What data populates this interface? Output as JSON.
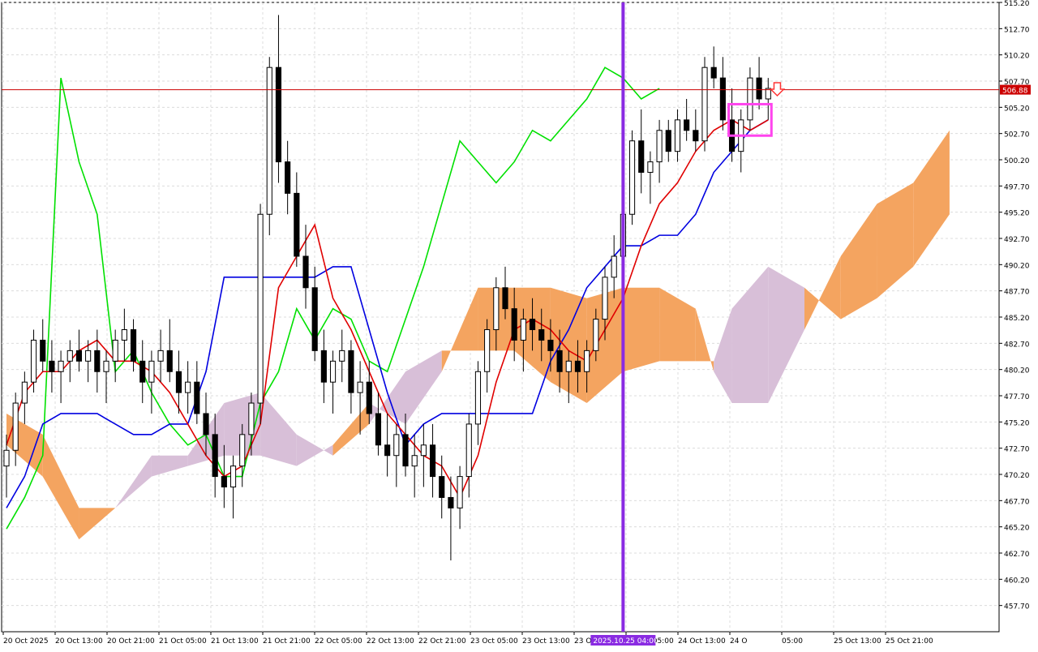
{
  "chart_data": {
    "type": "candlestick",
    "title": "",
    "price_axis": {
      "ylim": [
        455.2,
        515.2
      ],
      "ticks": [
        "515.20",
        "512.70",
        "510.20",
        "507.70",
        "505.20",
        "502.70",
        "500.20",
        "497.70",
        "495.20",
        "492.70",
        "490.20",
        "487.70",
        "485.20",
        "482.70",
        "480.20",
        "477.70",
        "475.20",
        "472.70",
        "470.20",
        "467.70",
        "465.20",
        "462.70",
        "460.20",
        "457.70"
      ]
    },
    "time_axis": {
      "ticks": [
        "20 Oct 2025",
        "20 Oct 13:00",
        "20 Oct 21:00",
        "21 Oct 05:00",
        "21 Oct 13:00",
        "21 Oct 21:00",
        "22 Oct 05:00",
        "22 Oct 13:00",
        "22 Oct 21:00",
        "23 Oct 05:00",
        "23 Oct 13:00",
        "23 Oct 21:00",
        "24 Oct 05:00",
        "24 Oct 13:00",
        "24 O",
        "05:00",
        "25 Oct 13:00",
        "25 Oct 21:00"
      ],
      "cursor_label": "2025.10.25 04:00"
    },
    "current_price": {
      "value": 506.88,
      "label": "506.88"
    },
    "grid": true,
    "colors": {
      "bull_body": "#ffffff",
      "bear_body": "#000000",
      "tenkan": "#e00000",
      "kijun": "#0000e0",
      "chikou": "#00e000",
      "kumo_bull": "#f4a460",
      "kumo_bear": "#d8bfd8",
      "cursor": "#8a2be2",
      "highlight": "#ff44ee",
      "price_line": "#cc0000"
    },
    "candles": [
      [
        471,
        474,
        468,
        472.5
      ],
      [
        472.5,
        478,
        471,
        477
      ],
      [
        477,
        480,
        475,
        479
      ],
      [
        479,
        484,
        478,
        483
      ],
      [
        483,
        485,
        480,
        481
      ],
      [
        481,
        483,
        478,
        480
      ],
      [
        480,
        482,
        477,
        481
      ],
      [
        481,
        483,
        479,
        482
      ],
      [
        482,
        484,
        480,
        481
      ],
      [
        481,
        483,
        479,
        482
      ],
      [
        482,
        484,
        478,
        480
      ],
      [
        480,
        482,
        477,
        481
      ],
      [
        481,
        484,
        479,
        483
      ],
      [
        483,
        486,
        481,
        484
      ],
      [
        484,
        485,
        480,
        481
      ],
      [
        481,
        483,
        477,
        479
      ],
      [
        479,
        482,
        476,
        481
      ],
      [
        481,
        484,
        479,
        482
      ],
      [
        482,
        485,
        479,
        480
      ],
      [
        480,
        482,
        476,
        478
      ],
      [
        478,
        481,
        476,
        479
      ],
      [
        479,
        481,
        475,
        476
      ],
      [
        476,
        478,
        472,
        474
      ],
      [
        474,
        476,
        468,
        470
      ],
      [
        470,
        473,
        467,
        469
      ],
      [
        469,
        472,
        466,
        471
      ],
      [
        471,
        475,
        469,
        474
      ],
      [
        474,
        478,
        472,
        477
      ],
      [
        477,
        496,
        475,
        495
      ],
      [
        495,
        510,
        493,
        509
      ],
      [
        509,
        514,
        498,
        500
      ],
      [
        500,
        502,
        495,
        497
      ],
      [
        497,
        499,
        490,
        491
      ],
      [
        491,
        494,
        486,
        488
      ],
      [
        488,
        490,
        481,
        482
      ],
      [
        482,
        484,
        477,
        479
      ],
      [
        479,
        482,
        476,
        481
      ],
      [
        481,
        484,
        479,
        482
      ],
      [
        482,
        483,
        476,
        478
      ],
      [
        478,
        481,
        474,
        479
      ],
      [
        479,
        481,
        475,
        476
      ],
      [
        476,
        478,
        472,
        473
      ],
      [
        473,
        476,
        470,
        472
      ],
      [
        472,
        475,
        469,
        474
      ],
      [
        474,
        476,
        470,
        471
      ],
      [
        471,
        474,
        468,
        472
      ],
      [
        472,
        475,
        469,
        473
      ],
      [
        473,
        475,
        468,
        470
      ],
      [
        470,
        472,
        466,
        468
      ],
      [
        468,
        470,
        462,
        467
      ],
      [
        467,
        471,
        465,
        470
      ],
      [
        470,
        476,
        468,
        475
      ],
      [
        475,
        481,
        473,
        480
      ],
      [
        480,
        485,
        478,
        484
      ],
      [
        484,
        489,
        482,
        488
      ],
      [
        488,
        490,
        485,
        486
      ],
      [
        486,
        488,
        481,
        483
      ],
      [
        483,
        486,
        480,
        485
      ],
      [
        485,
        487,
        482,
        484
      ],
      [
        484,
        486,
        481,
        483
      ],
      [
        483,
        485,
        480,
        482
      ],
      [
        482,
        484,
        478,
        480
      ],
      [
        480,
        482,
        477,
        481
      ],
      [
        481,
        483,
        478,
        480
      ],
      [
        480,
        483,
        478,
        482
      ],
      [
        482,
        486,
        481,
        485
      ],
      [
        485,
        490,
        483,
        489
      ],
      [
        489,
        493,
        487,
        491
      ],
      [
        491,
        496,
        489,
        495
      ],
      [
        495,
        503,
        494,
        502
      ],
      [
        502,
        505,
        497,
        499
      ],
      [
        499,
        501,
        496,
        500
      ],
      [
        500,
        504,
        498,
        503
      ],
      [
        503,
        504,
        500,
        501
      ],
      [
        501,
        505,
        500,
        504
      ],
      [
        504,
        506,
        502,
        503
      ],
      [
        503,
        505,
        501,
        502
      ],
      [
        502,
        510,
        501,
        509
      ],
      [
        509,
        511,
        507,
        508
      ],
      [
        508,
        510,
        503,
        504
      ],
      [
        504,
        507,
        500,
        501
      ],
      [
        501,
        505,
        499,
        504
      ],
      [
        504,
        509,
        503,
        508
      ],
      [
        508,
        510,
        505,
        506
      ],
      [
        506,
        508,
        504,
        507
      ]
    ],
    "tenkan_sen": [
      [
        0,
        473
      ],
      [
        2,
        478
      ],
      [
        4,
        480
      ],
      [
        6,
        480
      ],
      [
        8,
        482
      ],
      [
        10,
        483
      ],
      [
        12,
        481
      ],
      [
        14,
        481
      ],
      [
        16,
        480
      ],
      [
        18,
        478
      ],
      [
        20,
        475
      ],
      [
        22,
        472
      ],
      [
        24,
        470
      ],
      [
        26,
        471
      ],
      [
        28,
        475
      ],
      [
        30,
        488
      ],
      [
        32,
        491
      ],
      [
        34,
        494
      ],
      [
        36,
        487
      ],
      [
        38,
        484
      ],
      [
        40,
        480
      ],
      [
        42,
        476
      ],
      [
        44,
        474
      ],
      [
        46,
        472
      ],
      [
        48,
        471
      ],
      [
        50,
        468
      ],
      [
        52,
        472
      ],
      [
        54,
        479
      ],
      [
        56,
        484
      ],
      [
        58,
        485
      ],
      [
        60,
        484
      ],
      [
        62,
        482
      ],
      [
        64,
        481
      ],
      [
        66,
        484
      ],
      [
        68,
        487
      ],
      [
        70,
        492
      ],
      [
        72,
        496
      ],
      [
        74,
        498
      ],
      [
        76,
        501
      ],
      [
        78,
        503
      ],
      [
        80,
        504
      ],
      [
        82,
        503
      ],
      [
        84,
        504
      ]
    ],
    "kijun_sen": [
      [
        0,
        467
      ],
      [
        2,
        470
      ],
      [
        4,
        475
      ],
      [
        6,
        476
      ],
      [
        8,
        476
      ],
      [
        10,
        476
      ],
      [
        12,
        475
      ],
      [
        14,
        474
      ],
      [
        16,
        474
      ],
      [
        18,
        475
      ],
      [
        20,
        475
      ],
      [
        22,
        480
      ],
      [
        24,
        489
      ],
      [
        26,
        489
      ],
      [
        28,
        489
      ],
      [
        30,
        489
      ],
      [
        32,
        489
      ],
      [
        34,
        489
      ],
      [
        36,
        490
      ],
      [
        38,
        490
      ],
      [
        40,
        484
      ],
      [
        42,
        478
      ],
      [
        44,
        473
      ],
      [
        46,
        475
      ],
      [
        48,
        476
      ],
      [
        50,
        476
      ],
      [
        52,
        476
      ],
      [
        54,
        476
      ],
      [
        56,
        476
      ],
      [
        58,
        476
      ],
      [
        60,
        481
      ],
      [
        62,
        484
      ],
      [
        64,
        488
      ],
      [
        66,
        490
      ],
      [
        68,
        492
      ],
      [
        70,
        492
      ],
      [
        72,
        493
      ],
      [
        74,
        493
      ],
      [
        76,
        495
      ],
      [
        78,
        499
      ],
      [
        80,
        501
      ],
      [
        82,
        503
      ],
      [
        84,
        504
      ]
    ],
    "chikou_span": [
      [
        0,
        465
      ],
      [
        2,
        468
      ],
      [
        4,
        472
      ],
      [
        6,
        508
      ],
      [
        8,
        500
      ],
      [
        10,
        495
      ],
      [
        12,
        480
      ],
      [
        14,
        482
      ],
      [
        16,
        478
      ],
      [
        18,
        475
      ],
      [
        20,
        473
      ],
      [
        22,
        474
      ],
      [
        24,
        470
      ],
      [
        26,
        470
      ],
      [
        28,
        477
      ],
      [
        30,
        480
      ],
      [
        32,
        486
      ],
      [
        34,
        483
      ],
      [
        36,
        486
      ],
      [
        38,
        485
      ],
      [
        40,
        481
      ],
      [
        42,
        480
      ],
      [
        44,
        485
      ],
      [
        46,
        490
      ],
      [
        48,
        496
      ],
      [
        50,
        502
      ],
      [
        52,
        500
      ],
      [
        54,
        498
      ],
      [
        56,
        500
      ],
      [
        58,
        503
      ],
      [
        60,
        502
      ],
      [
        62,
        504
      ],
      [
        64,
        506
      ],
      [
        66,
        509
      ],
      [
        68,
        508
      ],
      [
        70,
        506
      ],
      [
        72,
        507
      ]
    ],
    "kumo": {
      "span_a": [
        [
          0,
          476
        ],
        [
          4,
          474
        ],
        [
          8,
          467
        ],
        [
          12,
          467
        ],
        [
          16,
          470
        ],
        [
          20,
          471
        ],
        [
          24,
          472
        ],
        [
          28,
          472
        ],
        [
          32,
          471
        ],
        [
          36,
          473
        ],
        [
          40,
          477
        ],
        [
          44,
          475
        ],
        [
          48,
          480
        ],
        [
          52,
          488
        ],
        [
          56,
          488
        ],
        [
          60,
          488
        ],
        [
          64,
          487
        ],
        [
          68,
          488
        ],
        [
          72,
          488
        ],
        [
          76,
          486
        ],
        [
          78,
          480
        ],
        [
          80,
          477
        ],
        [
          84,
          477
        ],
        [
          88,
          484
        ],
        [
          92,
          491
        ],
        [
          96,
          496
        ],
        [
          100,
          498
        ],
        [
          104,
          503
        ]
      ],
      "span_b": [
        [
          0,
          473
        ],
        [
          4,
          470
        ],
        [
          8,
          464
        ],
        [
          12,
          467
        ],
        [
          16,
          472
        ],
        [
          20,
          472
        ],
        [
          24,
          477
        ],
        [
          28,
          478
        ],
        [
          32,
          474
        ],
        [
          36,
          472
        ],
        [
          40,
          475
        ],
        [
          44,
          480
        ],
        [
          48,
          482
        ],
        [
          52,
          482
        ],
        [
          56,
          482
        ],
        [
          60,
          479
        ],
        [
          64,
          477
        ],
        [
          68,
          480
        ],
        [
          72,
          481
        ],
        [
          76,
          481
        ],
        [
          78,
          481
        ],
        [
          80,
          486
        ],
        [
          84,
          490
        ],
        [
          88,
          488
        ],
        [
          92,
          485
        ],
        [
          96,
          487
        ],
        [
          100,
          490
        ],
        [
          104,
          495
        ]
      ]
    },
    "cursor_index": 68,
    "highlight_box": {
      "index_from": 80,
      "index_to": 84,
      "price_low": 502.5,
      "price_high": 505.5
    },
    "annotation_arrow": {
      "index": 85,
      "price": 506,
      "direction": "down"
    }
  }
}
